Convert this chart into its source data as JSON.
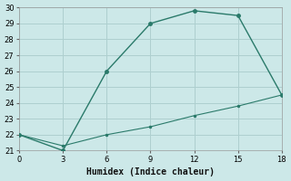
{
  "line1_x": [
    0,
    3,
    6,
    9,
    12,
    15,
    18
  ],
  "line1_y": [
    22,
    21,
    26,
    29,
    29.8,
    29.5,
    24.5
  ],
  "line2_x": [
    0,
    3,
    6,
    9,
    12,
    15,
    18
  ],
  "line2_y": [
    22,
    21.3,
    22.0,
    22.5,
    23.2,
    23.8,
    24.5
  ],
  "line_color": "#2a7a6a",
  "bg_color": "#cce8e8",
  "grid_color": "#aecfcf",
  "xlabel": "Humidex (Indice chaleur)",
  "xlim": [
    0,
    18
  ],
  "ylim": [
    21,
    30
  ],
  "xticks": [
    0,
    3,
    6,
    9,
    12,
    15,
    18
  ],
  "yticks": [
    21,
    22,
    23,
    24,
    25,
    26,
    27,
    28,
    29,
    30
  ],
  "tick_fontsize": 6,
  "xlabel_fontsize": 7
}
